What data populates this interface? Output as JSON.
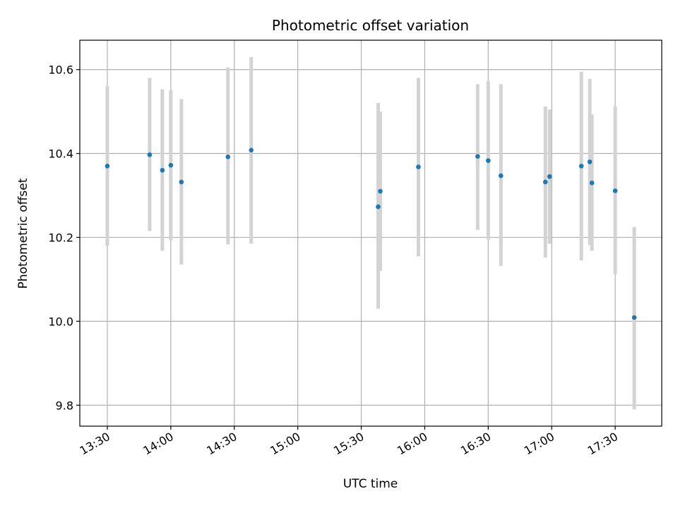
{
  "chart_data": {
    "type": "scatter",
    "title": "Photometric offset variation",
    "xlabel": "UTC time",
    "ylabel": "Photometric offset",
    "x_unit": "minutes past 13:00 UTC",
    "xlim": [
      "13:17",
      "17:52"
    ],
    "ylim": [
      9.75,
      10.67
    ],
    "x_ticks": [
      "13:30",
      "14:00",
      "14:30",
      "15:00",
      "15:30",
      "16:00",
      "16:30",
      "17:00",
      "17:30"
    ],
    "y_ticks": [
      "9.8",
      "10.0",
      "10.2",
      "10.4",
      "10.6"
    ],
    "grid": true,
    "marker_color": "#1f77b4",
    "errorbar_color": "#d3d3d3",
    "points": [
      {
        "x": "13:30",
        "y": 10.37,
        "ylo": 10.18,
        "yhi": 10.56
      },
      {
        "x": "13:50",
        "y": 10.397,
        "ylo": 10.215,
        "yhi": 10.58
      },
      {
        "x": "13:56",
        "y": 10.36,
        "ylo": 10.168,
        "yhi": 10.553
      },
      {
        "x": "14:00",
        "y": 10.372,
        "ylo": 10.193,
        "yhi": 10.551
      },
      {
        "x": "14:05",
        "y": 10.332,
        "ylo": 10.135,
        "yhi": 10.53
      },
      {
        "x": "14:27",
        "y": 10.392,
        "ylo": 10.183,
        "yhi": 10.605
      },
      {
        "x": "14:38",
        "y": 10.408,
        "ylo": 10.185,
        "yhi": 10.63
      },
      {
        "x": "15:38",
        "y": 10.273,
        "ylo": 10.03,
        "yhi": 10.52
      },
      {
        "x": "15:39",
        "y": 10.31,
        "ylo": 10.12,
        "yhi": 10.5
      },
      {
        "x": "15:57",
        "y": 10.368,
        "ylo": 10.155,
        "yhi": 10.58
      },
      {
        "x": "16:25",
        "y": 10.393,
        "ylo": 10.218,
        "yhi": 10.565
      },
      {
        "x": "16:30",
        "y": 10.383,
        "ylo": 10.195,
        "yhi": 10.572
      },
      {
        "x": "16:36",
        "y": 10.347,
        "ylo": 10.132,
        "yhi": 10.565
      },
      {
        "x": "16:57",
        "y": 10.332,
        "ylo": 10.152,
        "yhi": 10.512
      },
      {
        "x": "16:59",
        "y": 10.345,
        "ylo": 10.185,
        "yhi": 10.505
      },
      {
        "x": "17:14",
        "y": 10.37,
        "ylo": 10.145,
        "yhi": 10.595
      },
      {
        "x": "17:18",
        "y": 10.38,
        "ylo": 10.182,
        "yhi": 10.578
      },
      {
        "x": "17:19",
        "y": 10.33,
        "ylo": 10.168,
        "yhi": 10.493
      },
      {
        "x": "17:30",
        "y": 10.311,
        "ylo": 10.112,
        "yhi": 10.512
      },
      {
        "x": "17:39",
        "y": 10.009,
        "ylo": 9.79,
        "yhi": 10.225
      }
    ]
  }
}
